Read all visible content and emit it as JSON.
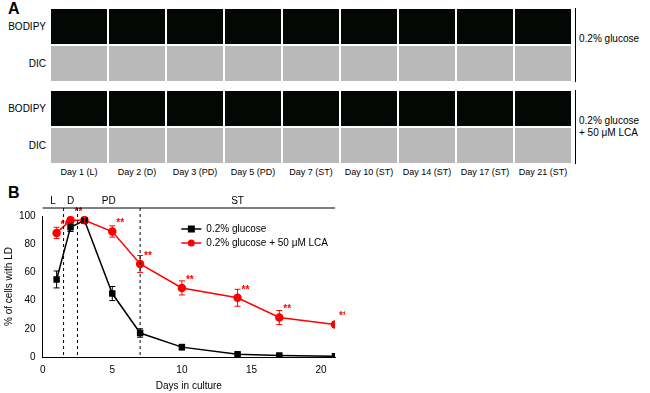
{
  "panel_a": {
    "label": "A",
    "row_groups": [
      {
        "condition": "0.2% glucose",
        "rows": [
          "BODIPY",
          "DIC"
        ]
      },
      {
        "condition": "0.2% glucose + 50 μM LCA",
        "rows": [
          "BODIPY",
          "DIC"
        ]
      }
    ],
    "columns": [
      "Day 1 (L)",
      "Day 2 (D)",
      "Day 3 (PD)",
      "Day 5 (PD)",
      "Day 7 (ST)",
      "Day 10 (ST)",
      "Day 14 (ST)",
      "Day 17 (ST)",
      "Day 21 (ST)"
    ]
  },
  "panel_b": {
    "label": "B"
  },
  "chart_data": {
    "type": "line",
    "x_label": "Days in culture",
    "y_label": "% of cells with LD",
    "x": [
      1,
      2,
      3,
      5,
      7,
      10,
      14,
      17,
      21
    ],
    "xlim": [
      0,
      21
    ],
    "xticks": [
      0,
      5,
      10,
      15,
      20
    ],
    "ylim": [
      0,
      100
    ],
    "yticks": [
      0,
      20,
      40,
      60,
      80,
      100
    ],
    "grid": false,
    "legend": "upper right",
    "phases": [
      {
        "label": "L",
        "start": 0,
        "end": 1.5
      },
      {
        "label": "D",
        "start": 1.5,
        "end": 2.5
      },
      {
        "label": "PD",
        "start": 2.5,
        "end": 7
      },
      {
        "label": "ST",
        "start": 7,
        "end": 21
      }
    ],
    "series": [
      {
        "name": "0.2% glucose",
        "color": "#000000",
        "marker": "square",
        "values": [
          55,
          92,
          97,
          45,
          17,
          7,
          2,
          1,
          0.5
        ],
        "error": [
          6,
          3,
          2,
          5,
          3,
          2,
          1,
          0.5,
          0.5
        ]
      },
      {
        "name": "0.2% glucose + 50 μM LCA",
        "color": "#ff0000",
        "marker": "circle",
        "values": [
          88,
          97,
          97,
          89,
          66,
          49,
          42,
          28,
          23
        ],
        "error": [
          4,
          2,
          2,
          4,
          6,
          5,
          6,
          5,
          2
        ],
        "significance": [
          "**",
          "**",
          null,
          "**",
          "**",
          "**",
          "**",
          "**",
          "**"
        ]
      }
    ]
  }
}
